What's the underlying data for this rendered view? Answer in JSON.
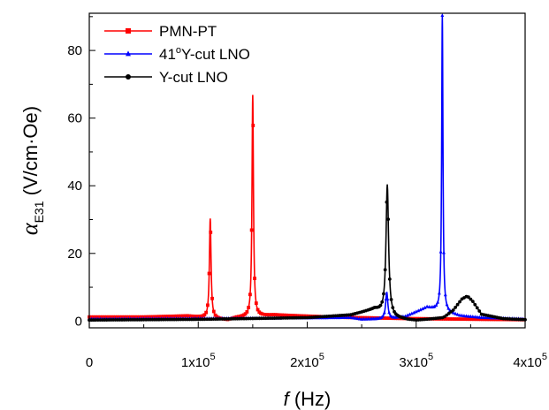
{
  "chart_data": {
    "type": "line",
    "xlabel": {
      "symbol": "f",
      "unit": "(Hz)"
    },
    "ylabel": {
      "symbol": "α",
      "subscript": "E31",
      "unit": "(V/cm·Oe)"
    },
    "xlim": [
      0,
      400000
    ],
    "ylim": [
      -2,
      91
    ],
    "x_ticks": [
      {
        "value": 0,
        "label": "0",
        "exp": ""
      },
      {
        "value": 100000,
        "label": "1x10",
        "exp": "5"
      },
      {
        "value": 200000,
        "label": "2x10",
        "exp": "5"
      },
      {
        "value": 300000,
        "label": "3x10",
        "exp": "5"
      },
      {
        "value": 400000,
        "label": "4x10",
        "exp": "5"
      }
    ],
    "y_ticks": [
      {
        "value": 0,
        "label": "0"
      },
      {
        "value": 20,
        "label": "20"
      },
      {
        "value": 40,
        "label": "40"
      },
      {
        "value": 60,
        "label": "60"
      },
      {
        "value": 80,
        "label": "80"
      }
    ],
    "grid": false,
    "legend": {
      "placement": "top-left"
    },
    "series": [
      {
        "name": "PMN-PT",
        "name_parts": [
          {
            "text": "PMN-PT"
          }
        ],
        "color": "#ff0000",
        "marker": "square",
        "baseline": [
          [
            0,
            1.2
          ],
          [
            50000,
            1.2
          ],
          [
            90000,
            1.5
          ],
          [
            120000,
            0.5
          ],
          [
            127000,
            0.3
          ],
          [
            135000,
            1.0
          ],
          [
            170000,
            1.8
          ],
          [
            230000,
            1.1
          ],
          [
            300000,
            0.7
          ],
          [
            400000,
            0.4
          ]
        ],
        "peaks": [
          {
            "x": 111000,
            "height": 29.5,
            "width": 900
          },
          {
            "x": 150000,
            "height": 65.5,
            "width": 800
          }
        ]
      },
      {
        "name": "41°Y-cut LNO",
        "name_parts": [
          {
            "text": "41"
          },
          {
            "text": "o",
            "sup": true
          },
          {
            "text": "Y-cut LNO"
          }
        ],
        "color": "#0000ff",
        "marker": "triangle",
        "baseline": [
          [
            0,
            0.6
          ],
          [
            150000,
            0.8
          ],
          [
            240000,
            1.0
          ],
          [
            250000,
            0.5
          ],
          [
            275000,
            0.6
          ],
          [
            290000,
            1.3
          ],
          [
            310000,
            4.0
          ],
          [
            340000,
            1.5
          ],
          [
            360000,
            1.0
          ],
          [
            400000,
            0.6
          ]
        ],
        "peaks": [
          {
            "x": 273000,
            "height": 8.0,
            "width": 1200
          },
          {
            "x": 324000,
            "height": 87.5,
            "width": 700
          }
        ]
      },
      {
        "name": "Y-cut LNO",
        "name_parts": [
          {
            "text": " Y-cut LNO"
          }
        ],
        "color": "#000000",
        "marker": "circle",
        "baseline": [
          [
            0,
            0.3
          ],
          [
            100000,
            0.5
          ],
          [
            200000,
            1.0
          ],
          [
            240000,
            1.8
          ],
          [
            262000,
            3.5
          ],
          [
            280000,
            1.0
          ],
          [
            292000,
            0.4
          ],
          [
            300000,
            0.2
          ],
          [
            310000,
            0.5
          ],
          [
            325000,
            1.0
          ],
          [
            334000,
            3.2
          ],
          [
            342000,
            6.5
          ],
          [
            347000,
            7.4
          ],
          [
            352000,
            5.8
          ],
          [
            360000,
            2.0
          ],
          [
            380000,
            0.7
          ],
          [
            400000,
            0.4
          ]
        ],
        "peaks": [
          {
            "x": 273500,
            "height": 38.5,
            "width": 1400
          }
        ]
      }
    ]
  }
}
